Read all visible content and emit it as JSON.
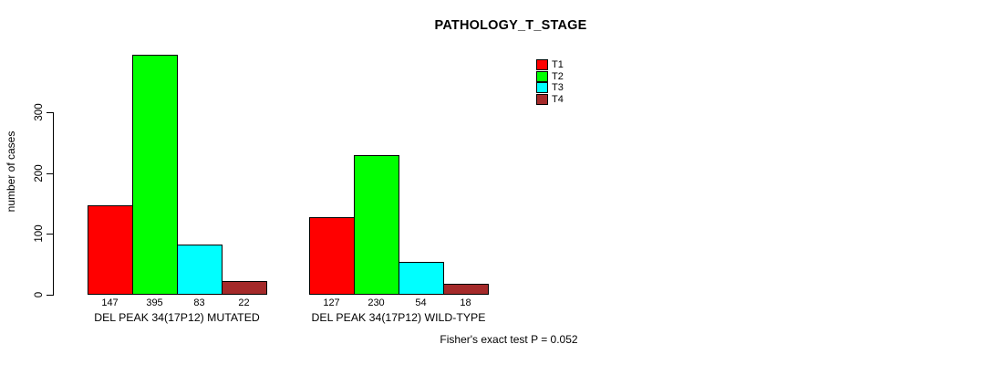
{
  "chart_data": {
    "type": "bar",
    "title": "PATHOLOGY_T_STAGE",
    "ylabel": "number of cases",
    "annotation": "Fisher's exact test P = 0.052",
    "categories": [
      "T1",
      "T2",
      "T3",
      "T4"
    ],
    "colors": [
      "#ff0000",
      "#00ff00",
      "#00ffff",
      "#a52a2a"
    ],
    "yticks": [
      0,
      100,
      200,
      300
    ],
    "axis_max": 300,
    "grid": false,
    "legend_position": "top-right",
    "groups": [
      {
        "label": "DEL PEAK 34(17P12) MUTATED",
        "values": [
          147,
          395,
          83,
          22
        ]
      },
      {
        "label": "DEL PEAK 34(17P12) WILD-TYPE",
        "values": [
          127,
          230,
          54,
          18
        ]
      }
    ]
  }
}
